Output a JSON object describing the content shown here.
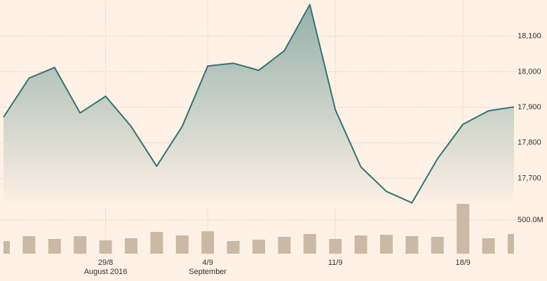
{
  "chart_data": [
    {
      "type": "area",
      "categories": [
        null,
        null,
        null,
        null,
        "29/8",
        null,
        null,
        null,
        "4/9",
        null,
        null,
        null,
        null,
        "11/9",
        null,
        null,
        null,
        null,
        "18/9",
        null,
        null
      ],
      "category_sublabels": [
        null,
        null,
        null,
        null,
        "August 2016",
        null,
        null,
        null,
        "September",
        null,
        null,
        null,
        null,
        null,
        null,
        null,
        null,
        null,
        null,
        null,
        null
      ],
      "values": [
        17872,
        17982,
        18012,
        17884,
        17931,
        17846,
        17734,
        17846,
        18016,
        18024,
        18004,
        18059,
        18189,
        17893,
        17732,
        17663,
        17631,
        17755,
        17852,
        17890,
        17901
      ],
      "color": "#2f7475",
      "ylim": [
        17620,
        18200
      ],
      "yticks": [
        {
          "value": 17700,
          "label": "17,700"
        },
        {
          "value": 17800,
          "label": "17,800"
        },
        {
          "value": 17900,
          "label": "17,900"
        },
        {
          "value": 18000,
          "label": "18,000"
        },
        {
          "value": 18100,
          "label": "18,100"
        }
      ],
      "grid": true
    },
    {
      "type": "bar",
      "values": [
        188,
        260,
        219,
        260,
        198,
        229,
        323,
        271,
        333,
        188,
        208,
        250,
        292,
        219,
        271,
        281,
        260,
        250,
        740,
        229,
        292
      ],
      "color": "#cdb9a3",
      "ylim": [
        0,
        750
      ],
      "yticks": [
        {
          "value": 500,
          "label": "500.0M"
        }
      ],
      "grid": true
    }
  ]
}
